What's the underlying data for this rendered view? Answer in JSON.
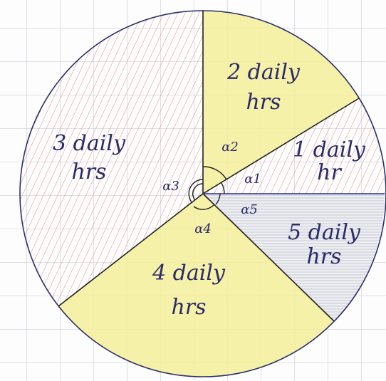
{
  "sectors": [
    {
      "label": [
        "1 daily",
        "hr"
      ],
      "angle": "α1"
    },
    {
      "label": [
        "2 daily",
        "hrs"
      ],
      "angle": "α2"
    },
    {
      "label": [
        "3 daily",
        "hrs"
      ],
      "angle": "α3"
    },
    {
      "label": [
        "4 daily",
        "hrs"
      ],
      "angle": "α4"
    },
    {
      "label": [
        "5 daily",
        "hrs"
      ],
      "angle": "α5"
    }
  ]
}
